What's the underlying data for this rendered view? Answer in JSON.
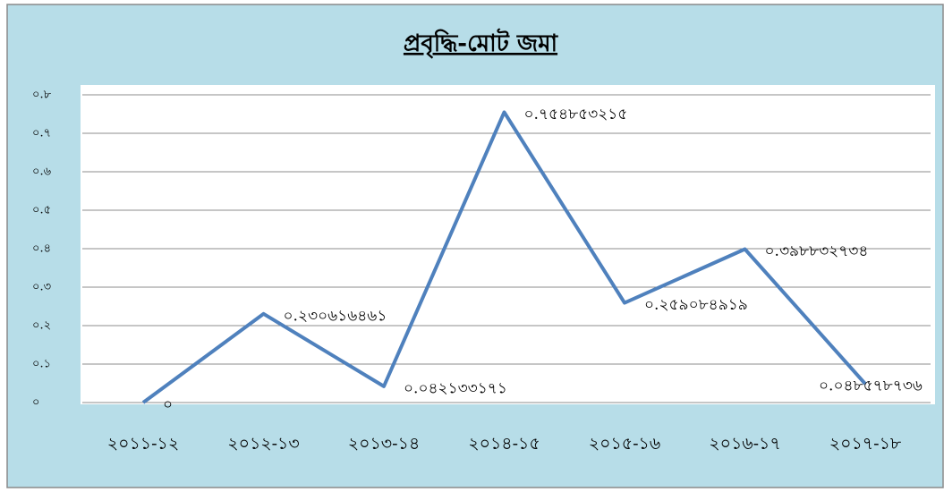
{
  "chart_data": {
    "type": "line",
    "title": "প্রবৃদ্ধি-মোট জমা",
    "categories": [
      "২০১১-১২",
      "২০১২-১৩",
      "২০১৩-১৪",
      "২০১৪-১৫",
      "২০১৫-১৬",
      "২০১৬-১৭",
      "২০১৭-১৮"
    ],
    "series": [
      {
        "name": "প্রবৃদ্ধি-মোট জমা",
        "color": "#4f81bd",
        "values": [
          0,
          0.230616461,
          0.042133171,
          0.754853215,
          0.259084919,
          0.398832734,
          0.048578736
        ],
        "value_labels": [
          "০",
          "০.২৩০৬১৬৪৬১",
          "০.০৪২১৩৩১৭১",
          "০.৭৫৪৮৫৩২১৫",
          "০.২৫৯০৮৪৯১৯",
          "০.৩৯৮৮৩২৭৩৪",
          "০.০৪৮৫৭৮৭৩৬"
        ]
      }
    ],
    "ylim": [
      0,
      0.8
    ],
    "yticks": [
      {
        "value": 0,
        "label": "০"
      },
      {
        "value": 0.1,
        "label": "০.১"
      },
      {
        "value": 0.2,
        "label": "০.২"
      },
      {
        "value": 0.3,
        "label": "০.৩"
      },
      {
        "value": 0.4,
        "label": "০.৪"
      },
      {
        "value": 0.5,
        "label": "০.৫"
      },
      {
        "value": 0.6,
        "label": "০.৬"
      },
      {
        "value": 0.7,
        "label": "০.৭"
      },
      {
        "value": 0.8,
        "label": "০.৮"
      }
    ],
    "grid": true
  }
}
